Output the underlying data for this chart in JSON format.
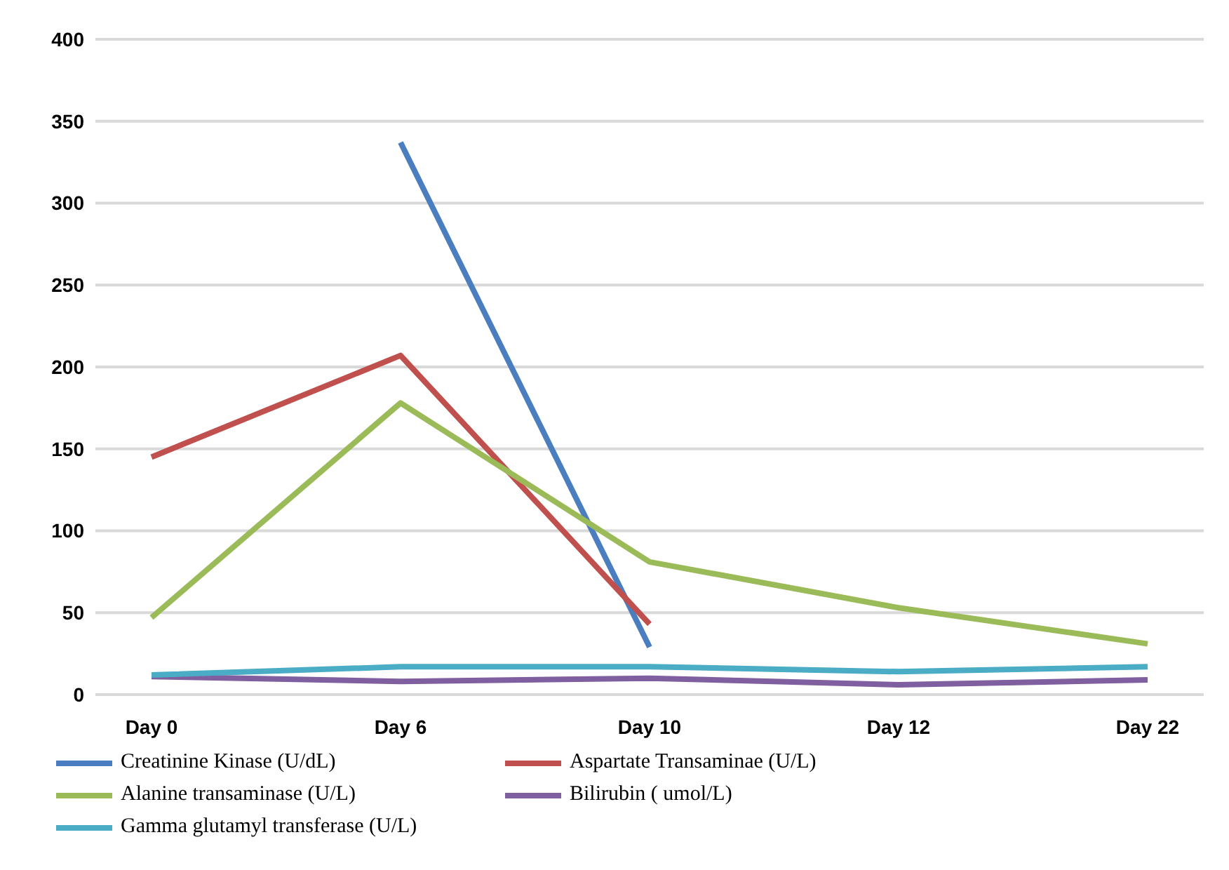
{
  "chart_data": {
    "type": "line",
    "categories": [
      "Day 0",
      "Day 6",
      "Day 10",
      "Day 12",
      "Day 22"
    ],
    "series": [
      {
        "name": "Creatinine Kinase (U/dL)",
        "color": "#4a7ebf",
        "values": [
          null,
          337,
          29,
          null,
          null
        ]
      },
      {
        "name": "Aspartate Transaminae  (U/L)",
        "color": "#c0504d",
        "values": [
          145,
          207,
          43,
          null,
          null
        ]
      },
      {
        "name": "Alanine transaminase (U/L)",
        "color": "#9bbb59",
        "values": [
          47,
          178,
          81,
          53,
          31
        ]
      },
      {
        "name": "Bilirubin ( umol/L)",
        "color": "#7f5fa0",
        "values": [
          11,
          8,
          10,
          6,
          9
        ]
      },
      {
        "name": "Gamma glutamyl transferase (U/L)",
        "color": "#4bacc6",
        "values": [
          12,
          17,
          17,
          14,
          17
        ]
      }
    ],
    "ylim": [
      0,
      400
    ],
    "yticks": [
      0,
      50,
      100,
      150,
      200,
      250,
      300,
      350,
      400
    ],
    "grid": "y",
    "legend": "bottom",
    "marker": "none",
    "line_style": "solid"
  }
}
